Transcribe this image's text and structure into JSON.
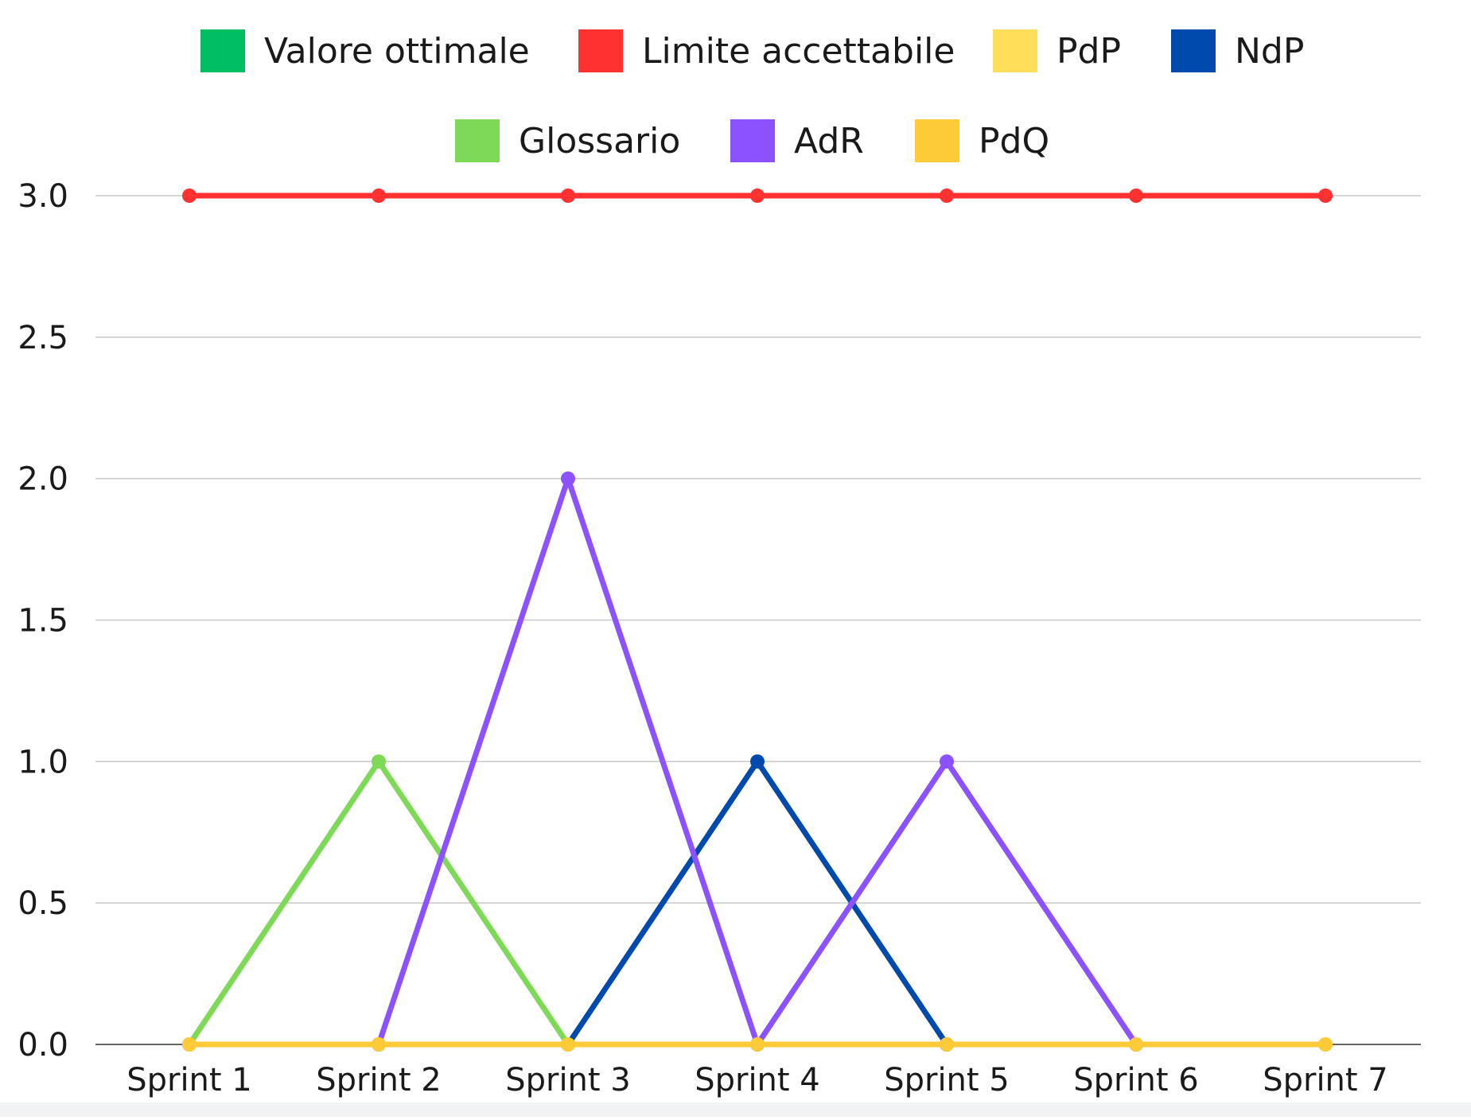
{
  "chart_data": {
    "type": "line",
    "categories": [
      "Sprint 1",
      "Sprint 2",
      "Sprint 3",
      "Sprint 4",
      "Sprint 5",
      "Sprint 6",
      "Sprint 7"
    ],
    "ylim": [
      0,
      3
    ],
    "yticks": [
      "0.0",
      "0.5",
      "1.0",
      "1.5",
      "2.0",
      "2.5",
      "3.0"
    ],
    "grid": true,
    "legend_position": "top-center",
    "series": [
      {
        "name": "Valore ottimale",
        "color": "#00bf63",
        "values": [
          0,
          0,
          0,
          0,
          0,
          0,
          0
        ],
        "line_visible": false
      },
      {
        "name": "Limite accettabile",
        "color": "#ff3131",
        "values": [
          3,
          3,
          3,
          3,
          3,
          3,
          3
        ]
      },
      {
        "name": "PdP",
        "color": "#ffde59",
        "values": [
          0,
          0,
          0,
          0,
          0,
          0,
          0
        ]
      },
      {
        "name": "NdP",
        "color": "#004aad",
        "values": [
          null,
          null,
          0,
          1,
          0,
          null,
          null
        ]
      },
      {
        "name": "Glossario",
        "color": "#7ed957",
        "values": [
          0,
          1,
          0,
          null,
          null,
          null,
          null
        ]
      },
      {
        "name": "AdR",
        "color": "#8c52ff",
        "values": [
          null,
          0,
          2,
          0,
          1,
          0,
          null
        ]
      },
      {
        "name": "PdQ",
        "color": "#fdcb37",
        "values": [
          0,
          0,
          0,
          0,
          0,
          0,
          0
        ]
      }
    ]
  }
}
